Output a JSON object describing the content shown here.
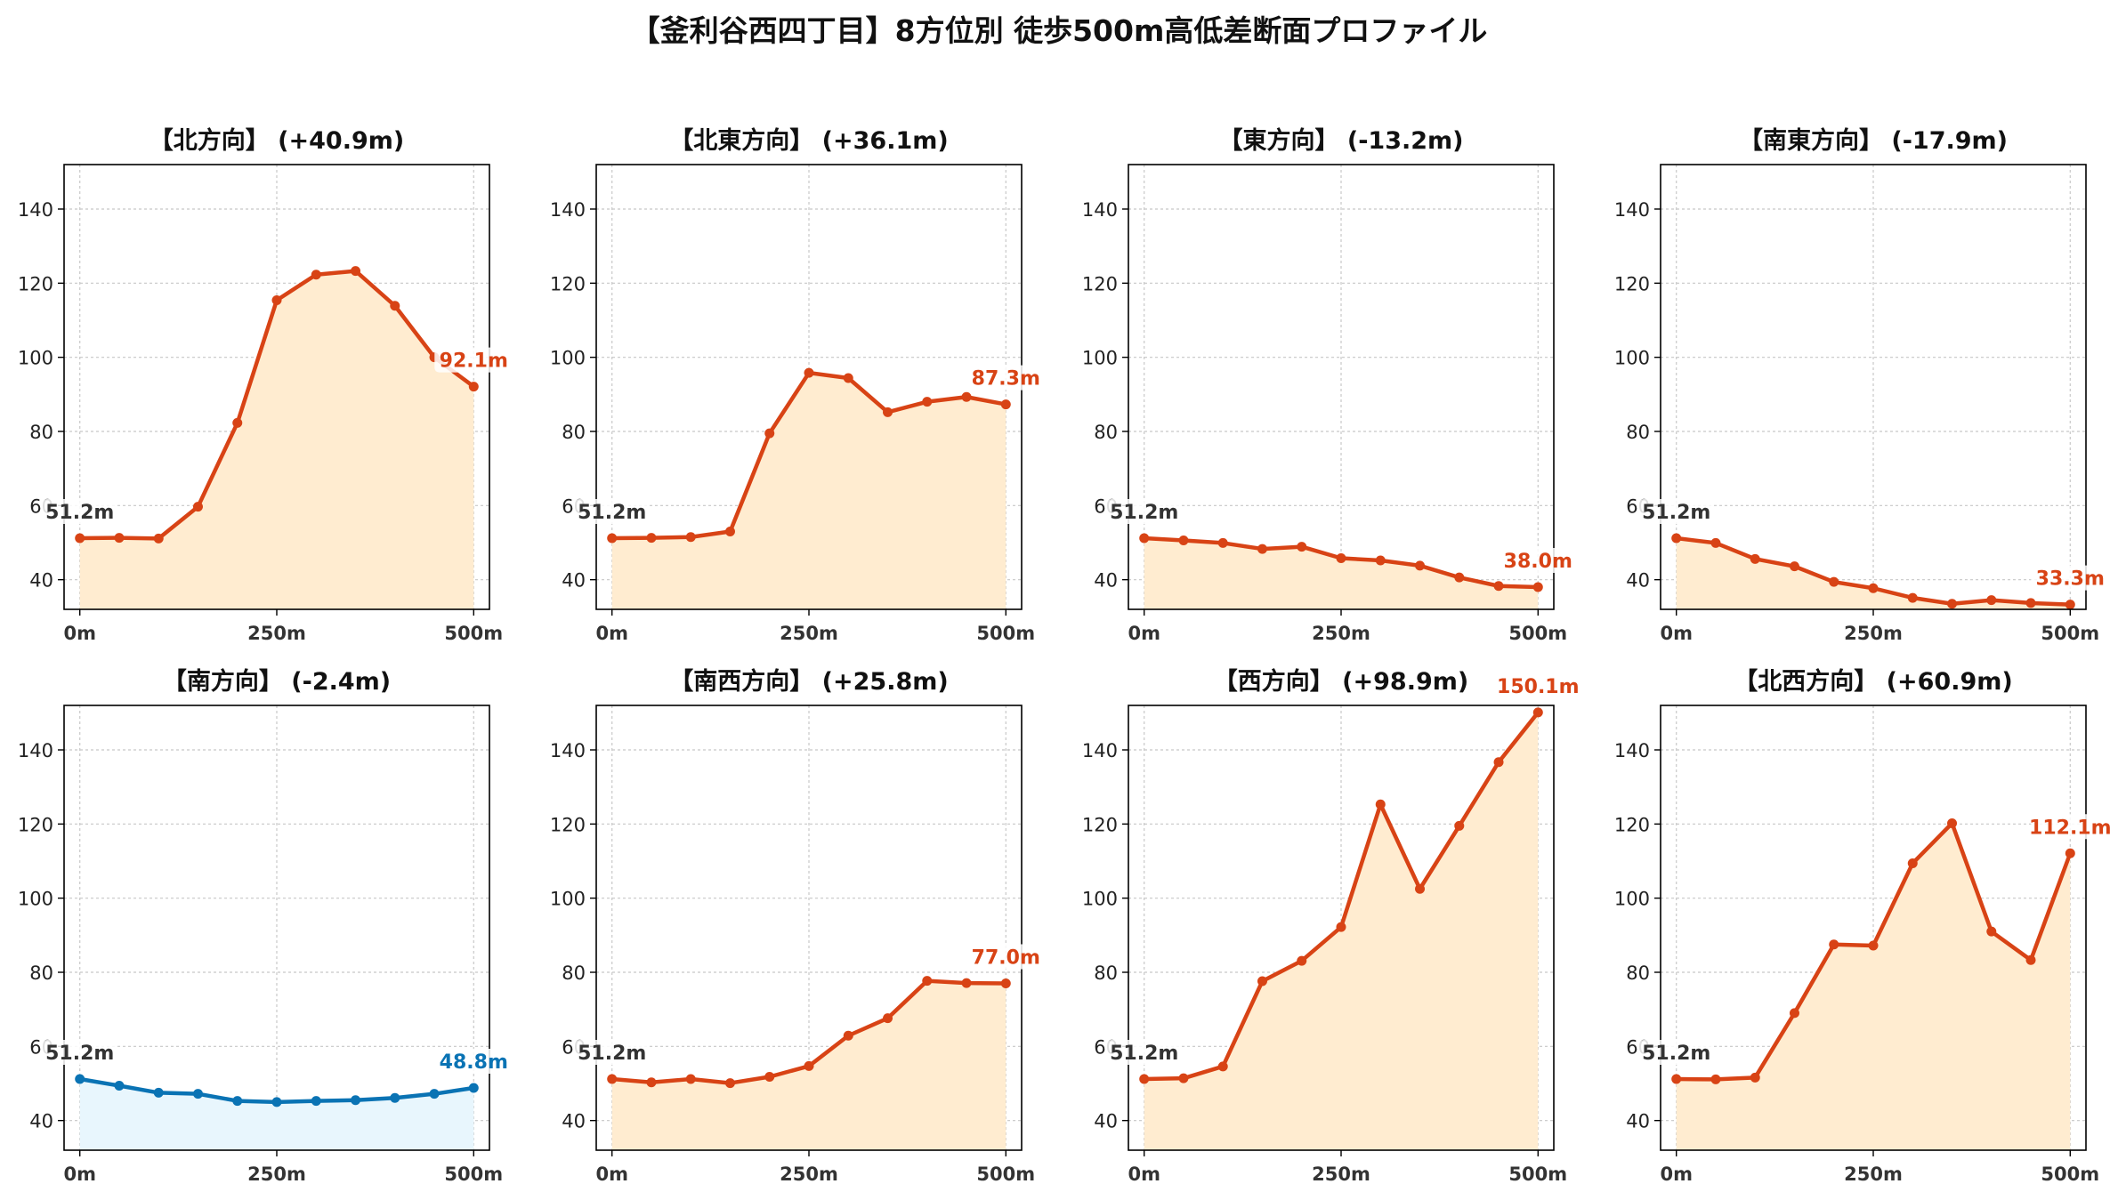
{
  "title": "【釜利谷西四丁目】8方位別 徒歩500m高低差断面プロファイル",
  "colors": {
    "up_line": "#d84315",
    "up_fill": "#ffecd0",
    "down_line": "#0a73b4",
    "down_fill": "#e8f6fd",
    "start_label": "#333333",
    "grid": "#c8c8c8"
  },
  "chart_data": [
    {
      "type": "area",
      "title": "【北方向】 (+40.9m)",
      "theme": "up",
      "x": [
        0,
        50,
        100,
        150,
        200,
        250,
        300,
        350,
        400,
        450,
        500
      ],
      "values": [
        51.2,
        51.3,
        51.1,
        59.7,
        82.3,
        115.4,
        122.3,
        123.3,
        113.9,
        100.0,
        92.1
      ],
      "start_label": "51.2m",
      "end_label": "92.1m",
      "xticks": [
        "0m",
        "250m",
        "500m"
      ],
      "yticks": [
        "40",
        "60",
        "80",
        "100",
        "120",
        "140"
      ],
      "xlim": [
        -20,
        520
      ],
      "ylim": [
        32,
        152
      ],
      "grid": true
    },
    {
      "type": "area",
      "title": "【北東方向】 (+36.1m)",
      "theme": "up",
      "x": [
        0,
        50,
        100,
        150,
        200,
        250,
        300,
        350,
        400,
        450,
        500
      ],
      "values": [
        51.2,
        51.3,
        51.5,
        53.0,
        79.5,
        95.8,
        94.4,
        85.2,
        88.0,
        89.3,
        87.3
      ],
      "start_label": "51.2m",
      "end_label": "87.3m",
      "xticks": [
        "0m",
        "250m",
        "500m"
      ],
      "yticks": [
        "40",
        "60",
        "80",
        "100",
        "120",
        "140"
      ],
      "xlim": [
        -20,
        520
      ],
      "ylim": [
        32,
        152
      ],
      "grid": true
    },
    {
      "type": "area",
      "title": "【東方向】 (-13.2m)",
      "theme": "up",
      "x": [
        0,
        50,
        100,
        150,
        200,
        250,
        300,
        350,
        400,
        450,
        500
      ],
      "values": [
        51.2,
        50.6,
        49.9,
        48.3,
        48.9,
        45.8,
        45.2,
        43.8,
        40.6,
        38.3,
        38.0
      ],
      "start_label": "51.2m",
      "end_label": "38.0m",
      "xticks": [
        "0m",
        "250m",
        "500m"
      ],
      "yticks": [
        "40",
        "60",
        "80",
        "100",
        "120",
        "140"
      ],
      "xlim": [
        -20,
        520
      ],
      "ylim": [
        32,
        152
      ],
      "grid": true
    },
    {
      "type": "area",
      "title": "【南東方向】 (-17.9m)",
      "theme": "up",
      "x": [
        0,
        50,
        100,
        150,
        200,
        250,
        300,
        350,
        400,
        450,
        500
      ],
      "values": [
        51.2,
        49.9,
        45.6,
        43.6,
        39.4,
        37.7,
        35.1,
        33.5,
        34.5,
        33.7,
        33.3
      ],
      "start_label": "51.2m",
      "end_label": "33.3m",
      "xticks": [
        "0m",
        "250m",
        "500m"
      ],
      "yticks": [
        "40",
        "60",
        "80",
        "100",
        "120",
        "140"
      ],
      "xlim": [
        -20,
        520
      ],
      "ylim": [
        32,
        152
      ],
      "grid": true
    },
    {
      "type": "area",
      "title": "【南方向】 (-2.4m)",
      "theme": "down",
      "x": [
        0,
        50,
        100,
        150,
        200,
        250,
        300,
        350,
        400,
        450,
        500
      ],
      "values": [
        51.2,
        49.4,
        47.5,
        47.2,
        45.3,
        45.0,
        45.3,
        45.5,
        46.1,
        47.2,
        48.8
      ],
      "start_label": "51.2m",
      "end_label": "48.8m",
      "xticks": [
        "0m",
        "250m",
        "500m"
      ],
      "yticks": [
        "40",
        "60",
        "80",
        "100",
        "120",
        "140"
      ],
      "xlim": [
        -20,
        520
      ],
      "ylim": [
        32,
        152
      ],
      "grid": true
    },
    {
      "type": "area",
      "title": "【南西方向】 (+25.8m)",
      "theme": "up",
      "x": [
        0,
        50,
        100,
        150,
        200,
        250,
        300,
        350,
        400,
        450,
        500
      ],
      "values": [
        51.2,
        50.3,
        51.2,
        50.1,
        51.8,
        54.7,
        62.9,
        67.6,
        77.7,
        77.1,
        77.0
      ],
      "start_label": "51.2m",
      "end_label": "77.0m",
      "xticks": [
        "0m",
        "250m",
        "500m"
      ],
      "yticks": [
        "40",
        "60",
        "80",
        "100",
        "120",
        "140"
      ],
      "xlim": [
        -20,
        520
      ],
      "ylim": [
        32,
        152
      ],
      "grid": true
    },
    {
      "type": "area",
      "title": "【西方向】 (+98.9m)",
      "theme": "up",
      "x": [
        0,
        50,
        100,
        150,
        200,
        250,
        300,
        350,
        400,
        450,
        500
      ],
      "values": [
        51.2,
        51.4,
        54.6,
        77.6,
        83.1,
        92.2,
        125.3,
        102.5,
        119.5,
        136.7,
        150.1
      ],
      "start_label": "51.2m",
      "end_label": "150.1m",
      "xticks": [
        "0m",
        "250m",
        "500m"
      ],
      "yticks": [
        "40",
        "60",
        "80",
        "100",
        "120",
        "140"
      ],
      "xlim": [
        -20,
        520
      ],
      "ylim": [
        32,
        152
      ],
      "grid": true
    },
    {
      "type": "area",
      "title": "【北西方向】 (+60.9m)",
      "theme": "up",
      "x": [
        0,
        50,
        100,
        150,
        200,
        250,
        300,
        350,
        400,
        450,
        500
      ],
      "values": [
        51.2,
        51.1,
        51.6,
        69.0,
        87.5,
        87.2,
        109.4,
        120.2,
        91.0,
        83.3,
        112.1
      ],
      "start_label": "51.2m",
      "end_label": "112.1m",
      "xticks": [
        "0m",
        "250m",
        "500m"
      ],
      "yticks": [
        "40",
        "60",
        "80",
        "100",
        "120",
        "140"
      ],
      "xlim": [
        -20,
        520
      ],
      "ylim": [
        32,
        152
      ],
      "grid": true
    }
  ]
}
